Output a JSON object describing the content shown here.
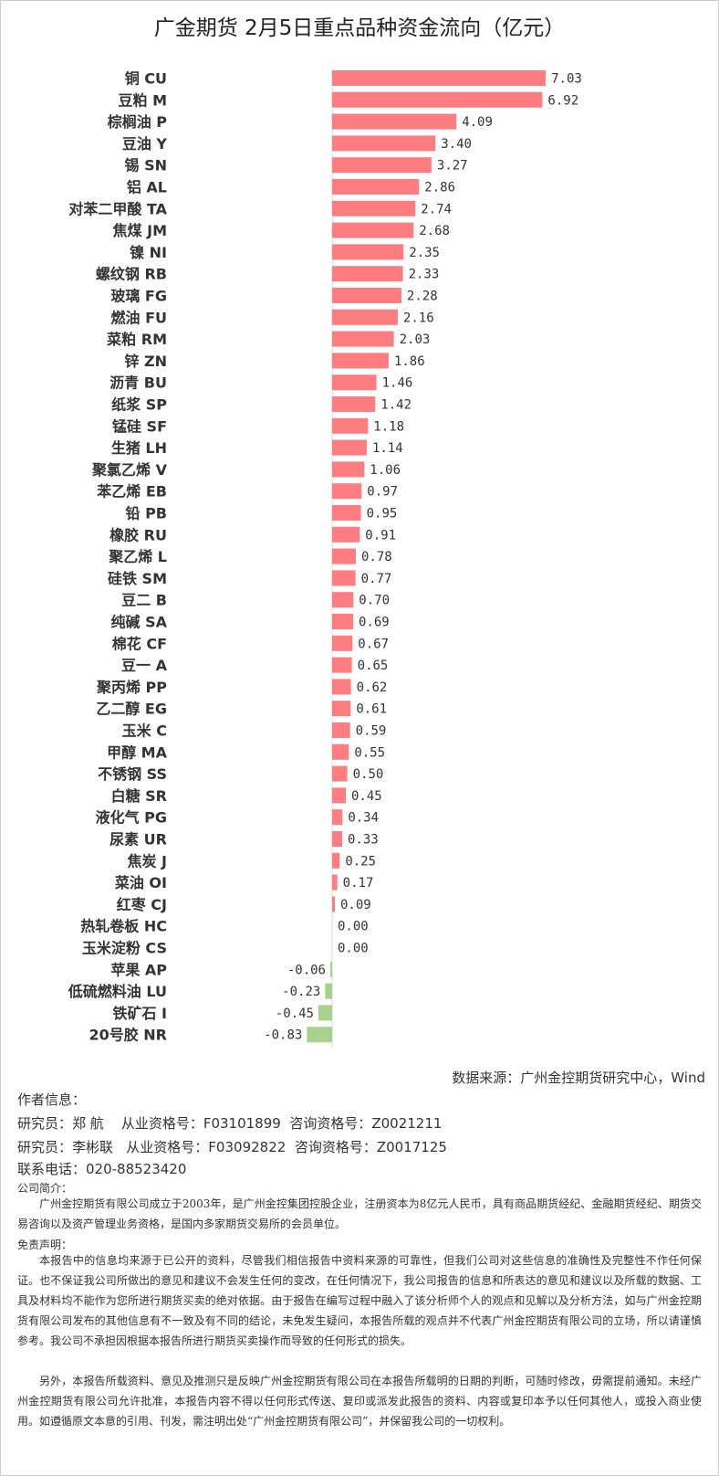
{
  "chart_data": {
    "type": "bar",
    "orientation": "horizontal",
    "title": "广金期货 2月5日重点品种资金流向（亿元）",
    "categories": [
      "铜 CU",
      "豆粕 M",
      "棕榈油 P",
      "豆油 Y",
      "锡 SN",
      "铝 AL",
      "对苯二甲酸 TA",
      "焦煤 JM",
      "镍 NI",
      "螺纹钢 RB",
      "玻璃 FG",
      "燃油 FU",
      "菜粕 RM",
      "锌 ZN",
      "沥青 BU",
      "纸浆 SP",
      "锰硅 SF",
      "生猪 LH",
      "聚氯乙烯 V",
      "苯乙烯 EB",
      "铅 PB",
      "橡胶 RU",
      "聚乙烯 L",
      "硅铁 SM",
      "豆二 B",
      "纯碱 SA",
      "棉花 CF",
      "豆一 A",
      "聚丙烯 PP",
      "乙二醇 EG",
      "玉米 C",
      "甲醇 MA",
      "不锈钢 SS",
      "白糖 SR",
      "液化气 PG",
      "尿素 UR",
      "焦炭 J",
      "菜油 OI",
      "红枣 CJ",
      "热轧卷板 HC",
      "玉米淀粉 CS",
      "苹果 AP",
      "低硫燃料油 LU",
      "铁矿石 I",
      "20号胶 NR"
    ],
    "values": [
      7.03,
      6.92,
      4.09,
      3.4,
      3.27,
      2.86,
      2.74,
      2.68,
      2.35,
      2.33,
      2.28,
      2.16,
      2.03,
      1.86,
      1.46,
      1.42,
      1.18,
      1.14,
      1.06,
      0.97,
      0.95,
      0.91,
      0.78,
      0.77,
      0.7,
      0.69,
      0.67,
      0.65,
      0.62,
      0.61,
      0.59,
      0.55,
      0.5,
      0.45,
      0.34,
      0.33,
      0.25,
      0.17,
      0.09,
      0.0,
      0.0,
      -0.06,
      -0.23,
      -0.45,
      -0.83
    ],
    "colors": {
      "positive": "#ff7c80",
      "negative": "#a9d18e"
    },
    "grid": false
  },
  "footer": {
    "source": "数据来源：广州金控期货研究中心，Wind",
    "author_heading": "作者信息：",
    "researcher1": "研究员：郑 航    从业资格号：F03101899  咨询资格号：Z0021211",
    "researcher2": "研究员：李彬联   从业资格号：F03092822  咨询资格号：Z0017125",
    "phone": "联系电话：020-88523420",
    "intro_heading": "公司简介：",
    "intro": "广州金控期货有限公司成立于2003年，是广州金控集团控股企业，注册资本为8亿元人民币，具有商品期货经纪、金融期货经纪、期货交易咨询以及资产管理业务资格，是国内多家期货交易所的会员单位。",
    "disclaimer_heading": "免责声明：",
    "disclaimer1": "本报告中的信息均来源于已公开的资料，尽管我们相信报告中资料来源的可靠性，但我们公司对这些信息的准确性及完整性不作任何保证。也不保证我公司所做出的意见和建议不会发生任何的变改，在任何情况下，我公司报告的信息和所表达的意见和建议以及所载的数据、工具及材料均不能作为您所进行期货买卖的绝对依据。由于报告在编写过程中融入了该分析师个人的观点和见解以及分析方法，如与广州金控期货有限公司发布的其他信息有不一致及有不同的结论，未免发生疑问，本报告所载的观点并不代表广州金控期货有限公司的立场，所以请谨慎参考。我公司不承担因根据本报告所进行期货买卖操作而导致的任何形式的损失。",
    "disclaimer2": "另外，本报告所载资料、意见及推测只是反映广州金控期货有限公司在本报告所载明的日期的判断，可随时修改，毋需提前通知。未经广州金控期货有限公司允许批准，本报告内容不得以任何形式传送、复印或派发此报告的资料、内容或复印本予以任何其他人，或投入商业使用。如遵循原文本意的引用、刊发，需注明出处“广州金控期货有限公司”，并保留我公司的一切权利。"
  }
}
